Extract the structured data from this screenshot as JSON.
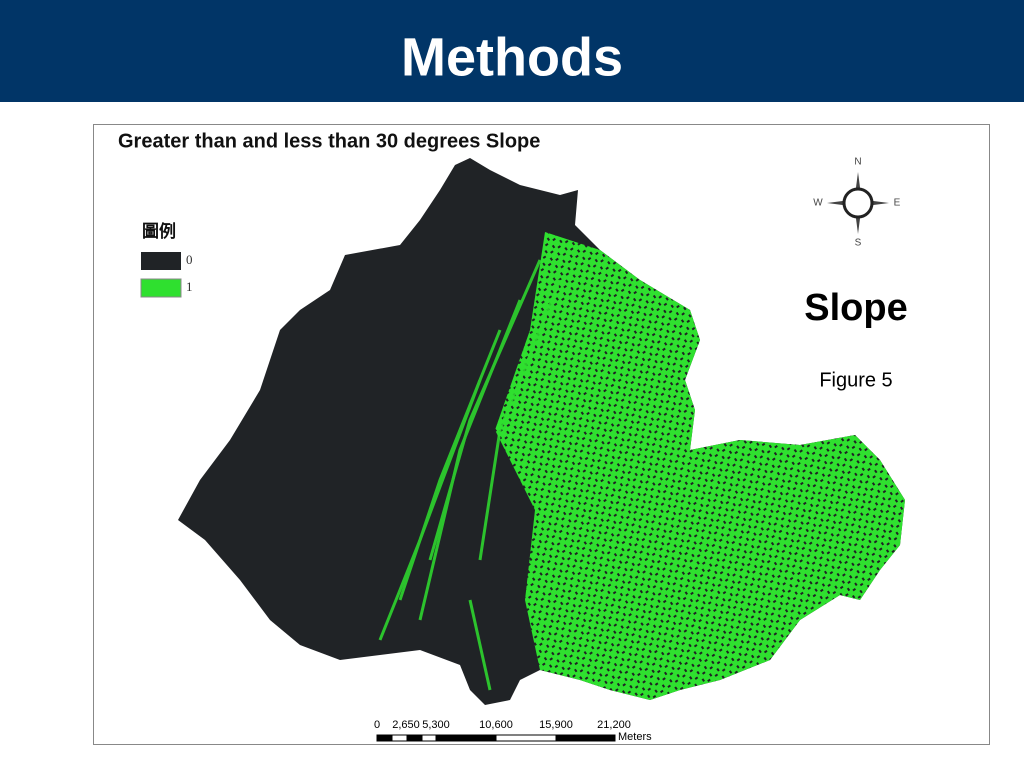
{
  "header": {
    "title": "Methods"
  },
  "map": {
    "title": "Greater than and less than 30 degrees Slope",
    "legend": {
      "title": "圖例",
      "items": [
        "0",
        "1"
      ]
    },
    "compass": {
      "north": "N",
      "west": "W",
      "east": "E",
      "south": "S"
    },
    "label": "Slope",
    "caption": "Figure 5",
    "scale_bar": {
      "labels": [
        "0",
        "2,650",
        "5,300",
        "10,600",
        "15,900",
        "21,200"
      ],
      "unit": "Meters"
    }
  }
}
